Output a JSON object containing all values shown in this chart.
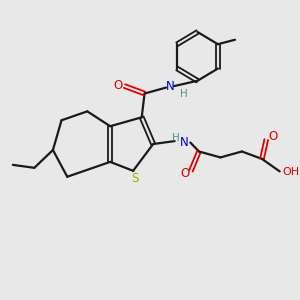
{
  "background_color": "#e8e8e8",
  "bond_color": "#1a1a1a",
  "nitrogen_color": "#0000cc",
  "oxygen_color": "#dd0000",
  "sulfur_color": "#aaaa00",
  "teal_color": "#4a9090",
  "figsize": [
    3.0,
    3.0
  ],
  "dpi": 100,
  "xlim": [
    0,
    10
  ],
  "ylim": [
    0,
    10
  ]
}
